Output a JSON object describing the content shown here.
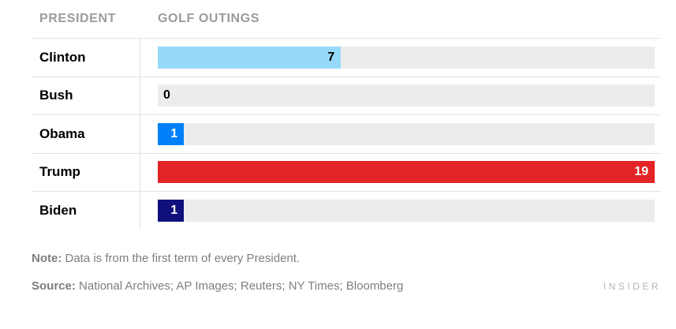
{
  "table": {
    "col1_header": "PRESIDENT",
    "col2_header": "GOLF OUTINGS"
  },
  "chart_data": {
    "type": "bar",
    "orientation": "horizontal",
    "title": "",
    "categories": [
      "Clinton",
      "Bush",
      "Obama",
      "Trump",
      "Biden"
    ],
    "values": [
      7,
      0,
      1,
      19,
      1
    ],
    "xlim": [
      0,
      19
    ],
    "max_value": 19,
    "value_labels_shown": true,
    "bar_colors": [
      "#96d9f9",
      "#ececec",
      "#0080f8",
      "#e32427",
      "#10107c"
    ],
    "value_label_colors": [
      "#000000",
      "#000000",
      "#ffffff",
      "#ffffff",
      "#ffffff"
    ],
    "track_color": "#ececec",
    "column_headers": [
      "PRESIDENT",
      "GOLF OUTINGS"
    ]
  },
  "rows": [
    {
      "president": "Clinton",
      "value": "7"
    },
    {
      "president": "Bush",
      "value": "0"
    },
    {
      "president": "Obama",
      "value": "1"
    },
    {
      "president": "Trump",
      "value": "19"
    },
    {
      "president": "Biden",
      "value": "1"
    }
  ],
  "footer": {
    "note_prefix": "Note:",
    "note_text": "Data is from the first term of every President.",
    "source_prefix": "Source:",
    "source_text": "National Archives; AP Images; Reuters; NY Times; Bloomberg",
    "brand": "INSIDER"
  }
}
